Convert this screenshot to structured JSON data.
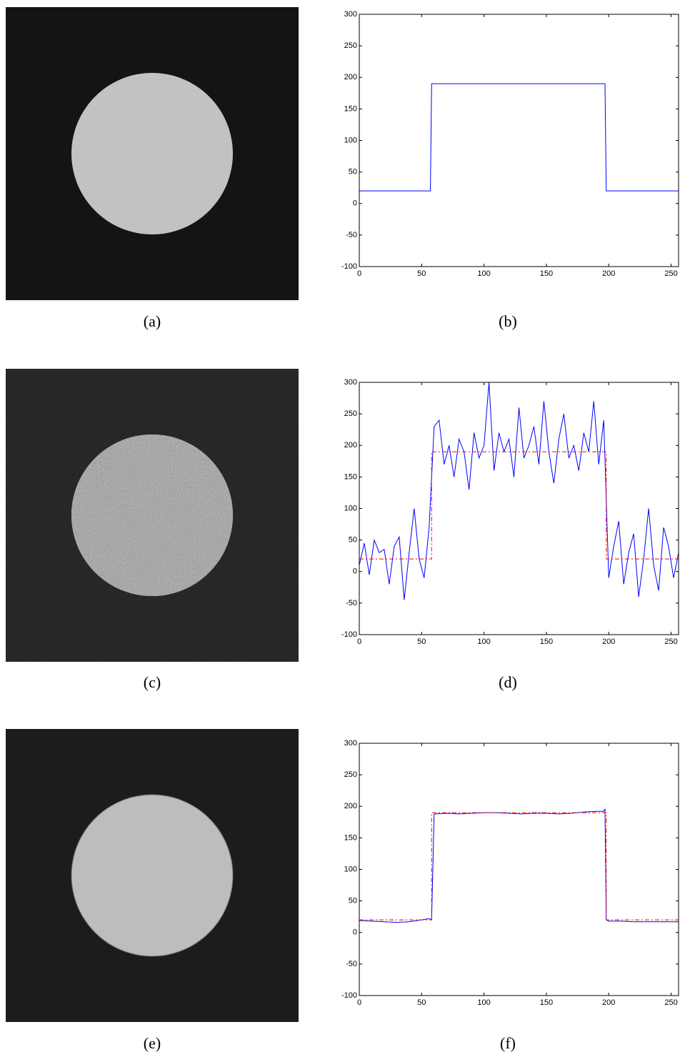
{
  "images": [
    {
      "caption": "(a)"
    },
    {
      "caption": "(c)"
    },
    {
      "caption": "(e)"
    }
  ],
  "chart_data": [
    {
      "type": "line",
      "caption": "(b)",
      "xlim": [
        0,
        256
      ],
      "ylim": [
        -100,
        300
      ],
      "xticks": [
        0,
        50,
        100,
        150,
        200,
        250
      ],
      "yticks": [
        -100,
        -50,
        0,
        50,
        100,
        150,
        200,
        250,
        300
      ],
      "series": [
        {
          "color": "#0000ff",
          "linestyle": "solid",
          "x": [
            0,
            57,
            58,
            197,
            198,
            256
          ],
          "values": [
            20,
            20,
            190,
            190,
            20,
            20
          ]
        }
      ]
    },
    {
      "type": "line",
      "caption": "(d)",
      "xlim": [
        0,
        256
      ],
      "ylim": [
        -100,
        300
      ],
      "xticks": [
        0,
        50,
        100,
        150,
        200,
        250
      ],
      "yticks": [
        -100,
        -50,
        0,
        50,
        100,
        150,
        200,
        250,
        300
      ],
      "series": [
        {
          "color": "#0000ff",
          "linestyle": "solid",
          "x": [
            0,
            4,
            8,
            12,
            16,
            20,
            24,
            28,
            32,
            36,
            40,
            44,
            48,
            52,
            56,
            60,
            64,
            68,
            72,
            76,
            80,
            84,
            88,
            92,
            96,
            100,
            104,
            108,
            112,
            116,
            120,
            124,
            128,
            132,
            136,
            140,
            144,
            148,
            152,
            156,
            160,
            164,
            168,
            172,
            176,
            180,
            184,
            188,
            192,
            196,
            200,
            204,
            208,
            212,
            216,
            220,
            224,
            228,
            232,
            236,
            240,
            244,
            248,
            252,
            256
          ],
          "values": [
            10,
            45,
            -5,
            50,
            30,
            35,
            -20,
            40,
            55,
            -45,
            30,
            100,
            20,
            -10,
            70,
            230,
            240,
            170,
            200,
            150,
            210,
            190,
            130,
            220,
            180,
            200,
            300,
            160,
            220,
            190,
            210,
            150,
            260,
            180,
            200,
            230,
            170,
            270,
            190,
            140,
            210,
            250,
            180,
            200,
            160,
            220,
            190,
            270,
            170,
            240,
            -10,
            40,
            80,
            -20,
            30,
            60,
            -40,
            20,
            100,
            10,
            -30,
            70,
            40,
            -10,
            30
          ]
        },
        {
          "color": "#ff0000",
          "linestyle": "dashed",
          "x": [
            0,
            58,
            58,
            198,
            198,
            256
          ],
          "values": [
            20,
            20,
            190,
            190,
            20,
            20
          ]
        }
      ]
    },
    {
      "type": "line",
      "caption": "(f)",
      "xlim": [
        0,
        256
      ],
      "ylim": [
        -100,
        300
      ],
      "xticks": [
        0,
        50,
        100,
        150,
        200,
        250
      ],
      "yticks": [
        -100,
        -50,
        0,
        50,
        100,
        150,
        200,
        250,
        300
      ],
      "series": [
        {
          "color": "#0000ff",
          "linestyle": "solid",
          "x": [
            0,
            10,
            20,
            30,
            40,
            50,
            56,
            58,
            60,
            70,
            80,
            90,
            100,
            110,
            120,
            130,
            140,
            150,
            160,
            170,
            180,
            190,
            196,
            197,
            198,
            200,
            210,
            220,
            230,
            240,
            250,
            256
          ],
          "values": [
            19,
            18,
            17,
            16,
            17,
            20,
            22,
            20,
            188,
            189,
            188,
            189,
            190,
            190,
            189,
            188,
            189,
            189,
            188,
            189,
            191,
            192,
            192,
            196,
            20,
            18,
            18,
            17,
            17,
            17,
            17,
            17
          ]
        },
        {
          "color": "#ff0000",
          "linestyle": "dashed",
          "x": [
            0,
            58,
            58,
            198,
            198,
            256
          ],
          "values": [
            20,
            20,
            190,
            190,
            20,
            20
          ]
        }
      ]
    }
  ]
}
